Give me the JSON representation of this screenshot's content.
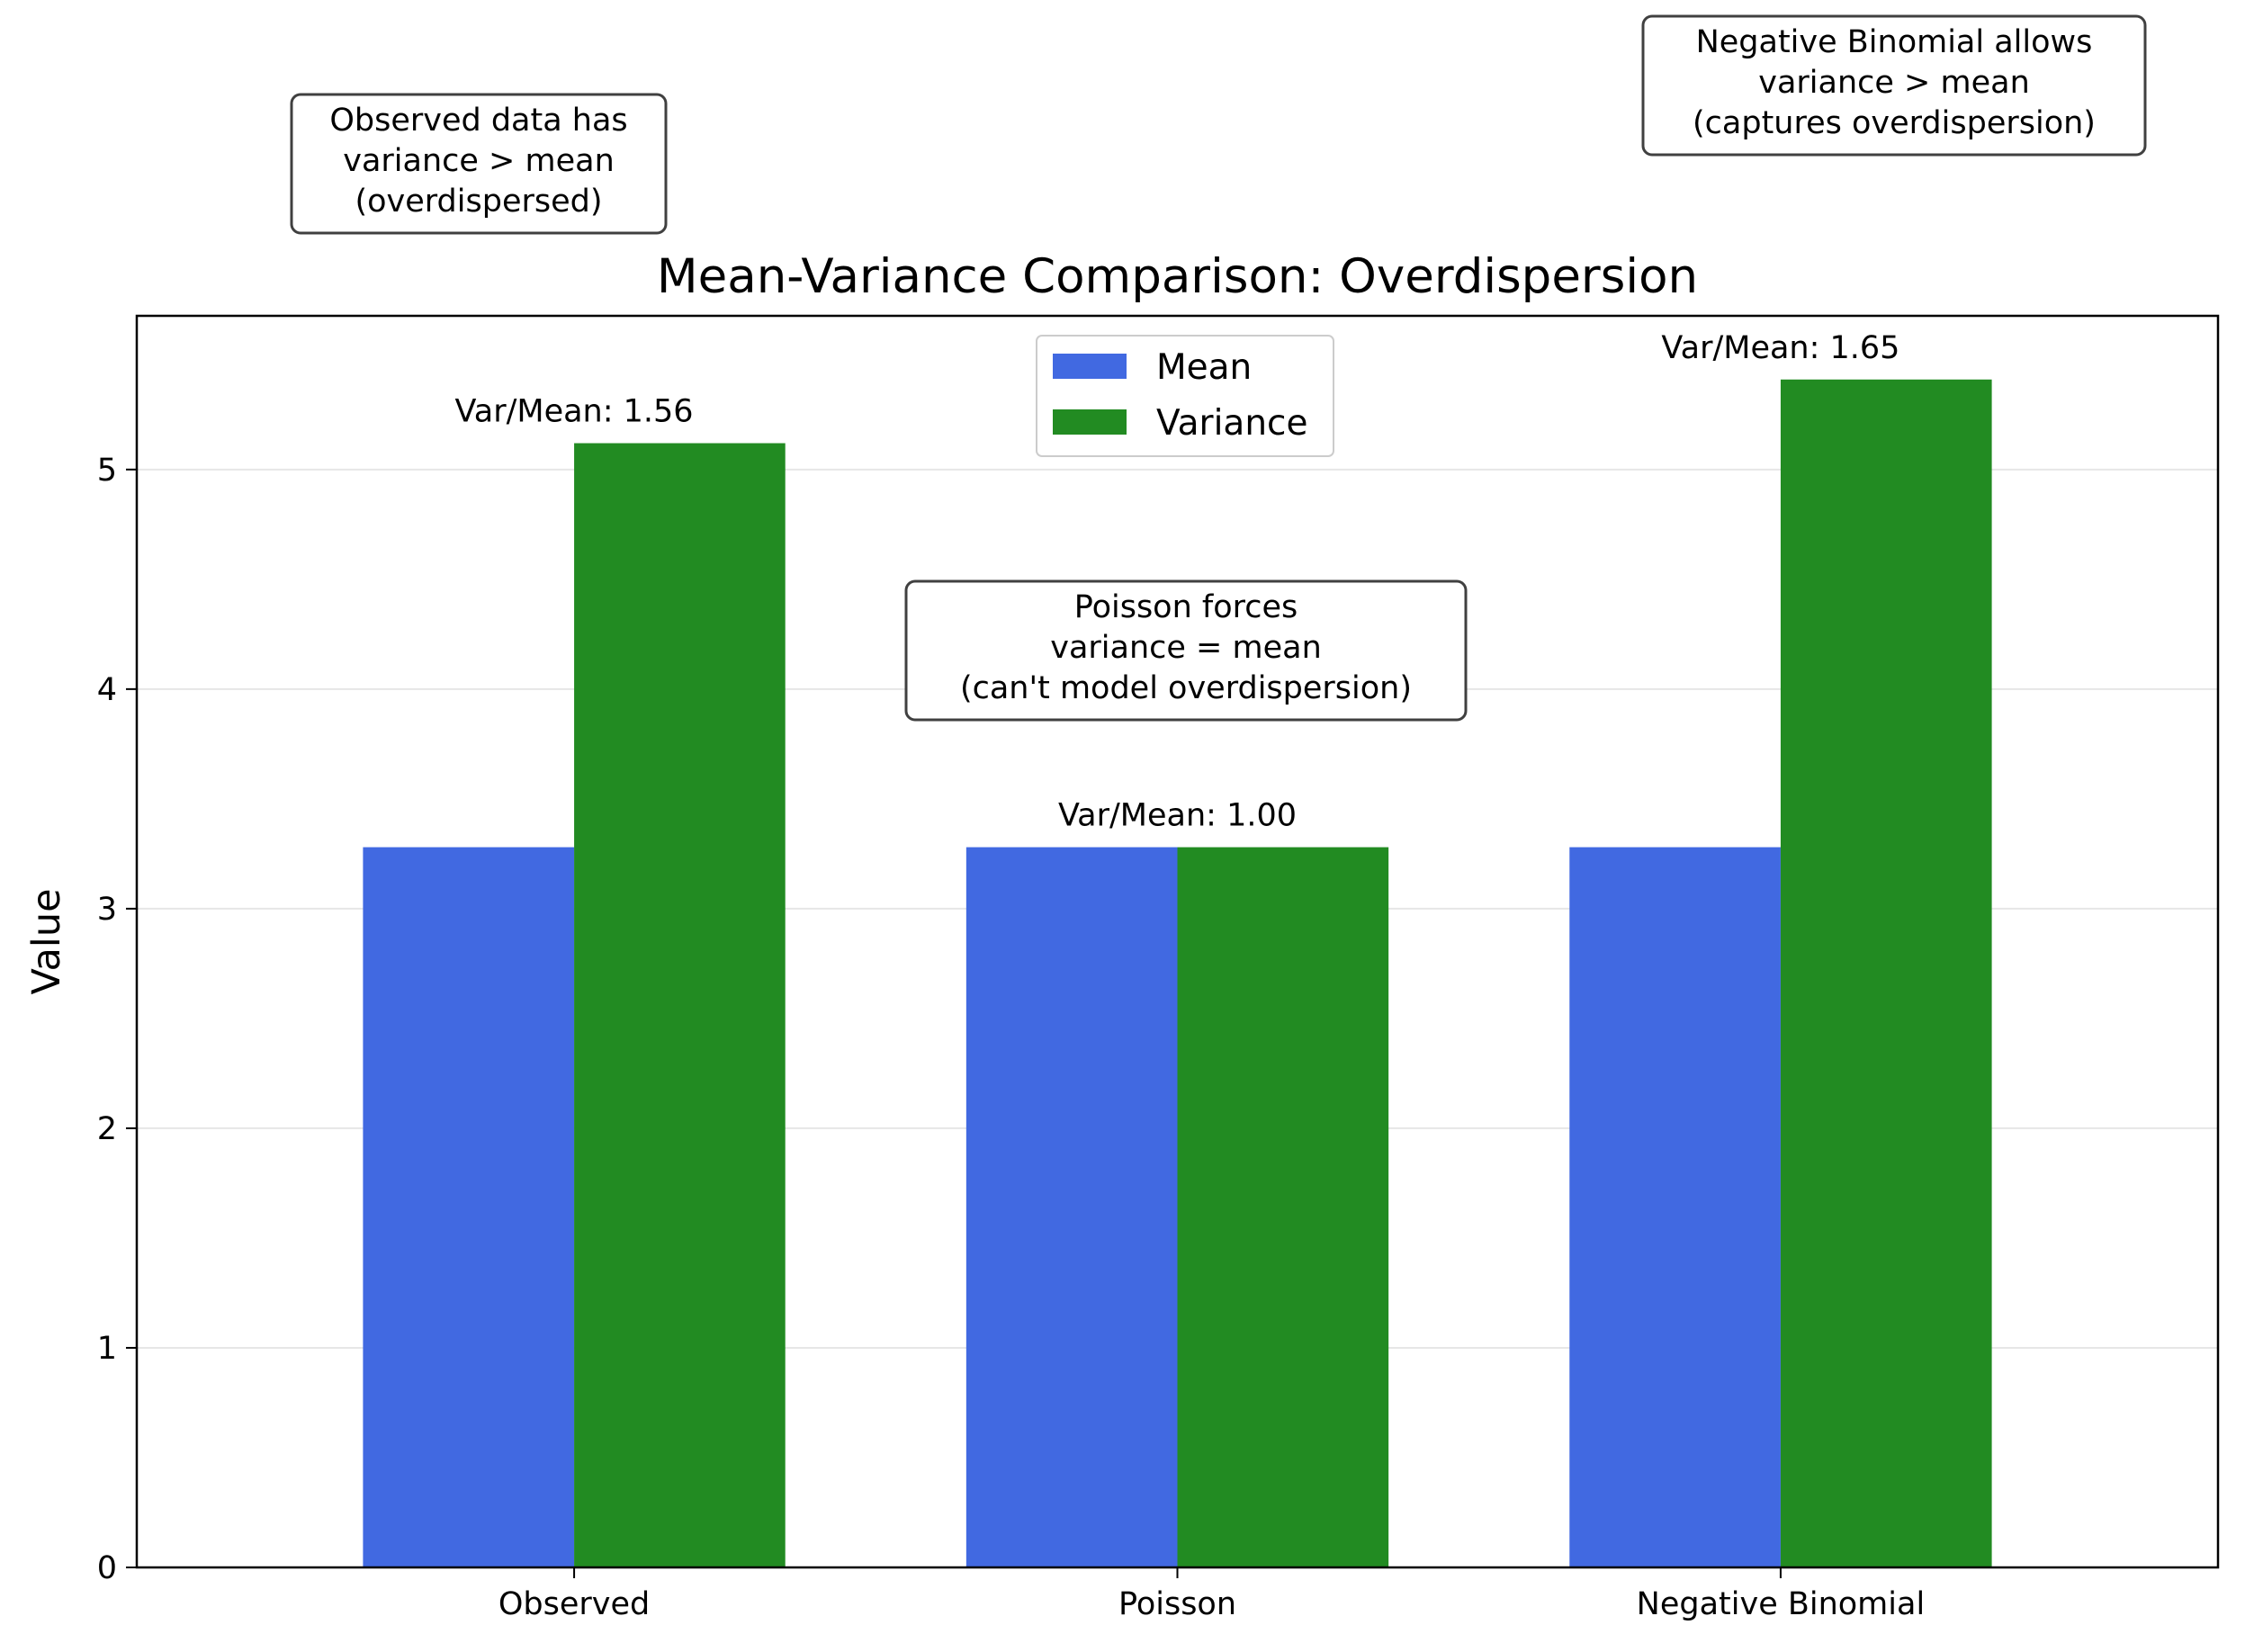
{
  "chart_data": {
    "type": "bar",
    "title": "Mean-Variance Comparison: Overdispersion",
    "xlabel": "",
    "ylabel": "Value",
    "categories": [
      "Observed",
      "Poisson",
      "Negative Binomial"
    ],
    "series": [
      {
        "name": "Mean",
        "color": "#4169e1",
        "values": [
          3.28,
          3.28,
          3.28
        ]
      },
      {
        "name": "Variance",
        "color": "#228b22",
        "values": [
          5.12,
          3.28,
          5.41
        ]
      }
    ],
    "ylim": [
      0,
      5.7
    ],
    "yticks": [
      "0",
      "1",
      "2",
      "3",
      "4",
      "5"
    ],
    "bar_labels": [
      "Var/Mean: 1.56",
      "Var/Mean: 1.00",
      "Var/Mean: 1.65"
    ],
    "grid": "y-axis, light",
    "legend": {
      "placement": "upper center",
      "entries": [
        "Mean",
        "Variance"
      ]
    },
    "annotations": [
      {
        "lines": [
          "Observed data has",
          "variance > mean",
          "(overdispersed)"
        ]
      },
      {
        "lines": [
          "Poisson forces",
          "variance = mean",
          "(can't model overdispersion)"
        ]
      },
      {
        "lines": [
          "Negative Binomial allows",
          "variance > mean",
          "(captures overdispersion)"
        ]
      }
    ]
  }
}
